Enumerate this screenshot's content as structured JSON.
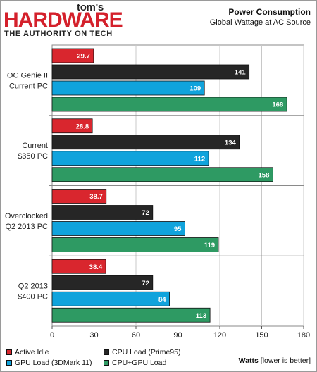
{
  "logo": {
    "top": "tom's",
    "main": "HARDWARE",
    "tagline": "THE AUTHORITY ON TECH"
  },
  "chart_data": {
    "type": "bar",
    "orientation": "horizontal",
    "title": "Power Consumption",
    "subtitle": "Global Wattage at AC Source",
    "categories": [
      [
        "OC Genie II",
        "Current PC"
      ],
      [
        "Current",
        "$350 PC"
      ],
      [
        "Overclocked",
        "Q2 2013 PC"
      ],
      [
        "Q2 2013",
        "$400 PC"
      ]
    ],
    "series": [
      {
        "name": "Active Idle",
        "color": "#d9262e",
        "values": [
          29.7,
          28.8,
          38.7,
          38.4
        ]
      },
      {
        "name": "CPU Load (Prime95)",
        "color": "#262626",
        "values": [
          141,
          134,
          72,
          72
        ]
      },
      {
        "name": "GPU Load (3DMark 11)",
        "color": "#10a3dc",
        "values": [
          109,
          112,
          95,
          84
        ]
      },
      {
        "name": "CPU+GPU Load",
        "color": "#2e9a63",
        "values": [
          168,
          158,
          119,
          113
        ]
      }
    ],
    "xlim": [
      0,
      180
    ],
    "xticks": [
      0,
      30,
      60,
      90,
      120,
      150,
      180
    ],
    "xlabel": "Watts",
    "xlabel_note": "[lower is better]",
    "grid": true,
    "legend_position": "bottom"
  }
}
